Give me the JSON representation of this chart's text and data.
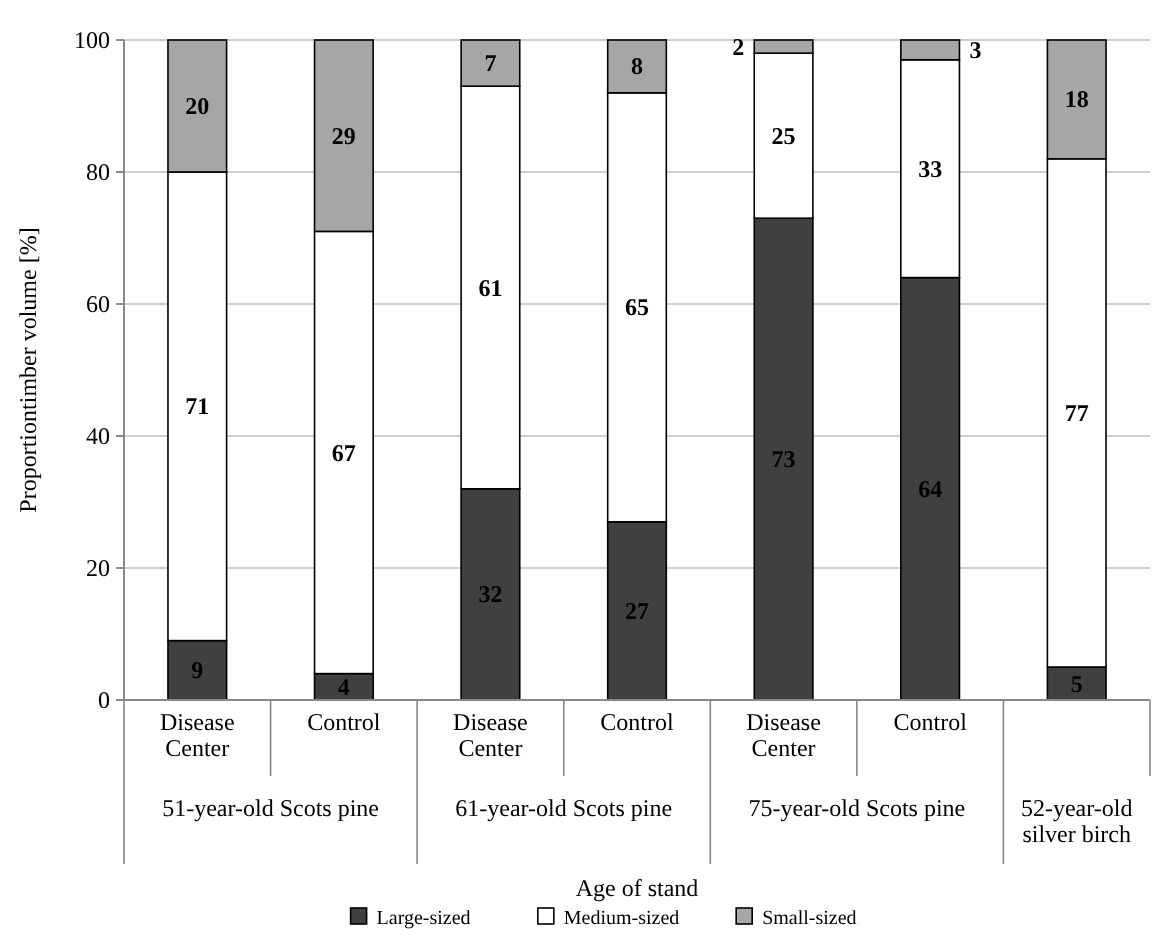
{
  "chart_data": {
    "type": "bar",
    "stacked": true,
    "xlabel": "Age of stand",
    "ylabel": "Proportiontimber volume [%]",
    "categories": [
      "Disease Center",
      "Control",
      "Disease Center",
      "Control",
      "Disease Center",
      "Control",
      null
    ],
    "series": [
      {
        "name": "Large-sized",
        "color": "#404040",
        "values": [
          9,
          4,
          32,
          27,
          73,
          64,
          5
        ]
      },
      {
        "name": "Medium-sized",
        "color": "#ffffff",
        "values": [
          71,
          67,
          61,
          65,
          25,
          33,
          77
        ]
      },
      {
        "name": "Small-sized",
        "color": "#a6a6a6",
        "values": [
          20,
          29,
          7,
          8,
          2,
          3,
          18
        ]
      }
    ],
    "annotations": [
      "51-year-old Scots pine",
      "61-year-old Scots pine",
      "75-year-old Scots pine",
      "52-year-old silver birch"
    ],
    "ylim": [
      0,
      100
    ],
    "yticks": [
      0,
      20,
      40,
      60,
      80,
      100
    ],
    "grid": "y",
    "legend": "bottom",
    "data_labels": true
  }
}
